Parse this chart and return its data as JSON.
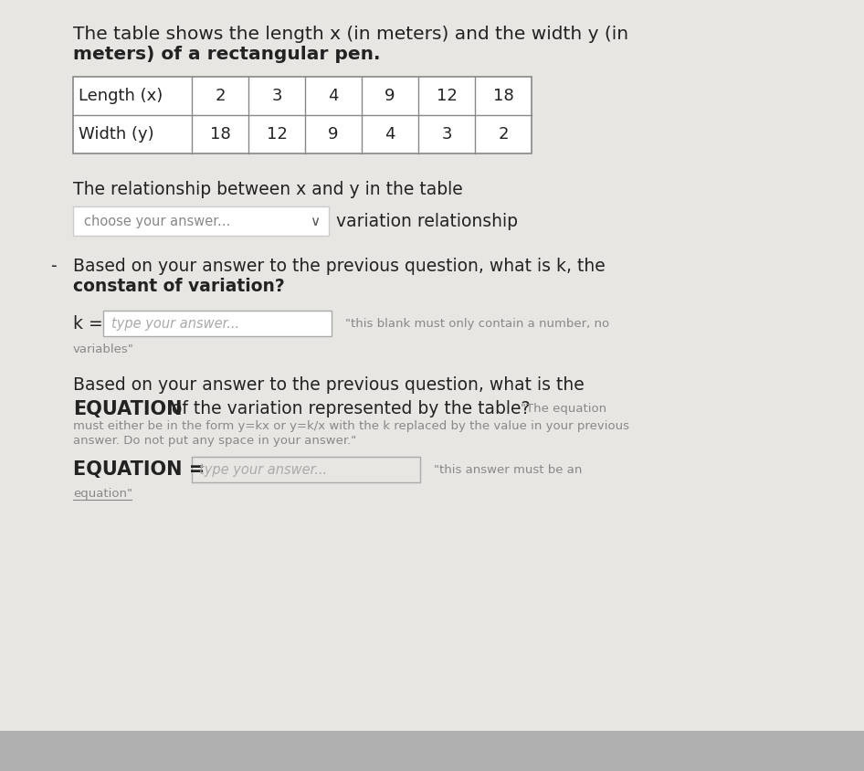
{
  "bg_color_outer": "#b0b0b0",
  "bg_color_inner": "#e8e6e2",
  "title_text_line1": "The table shows the length x (in meters) and the width y (in",
  "title_text_line2": "meters) of a rectangular pen.",
  "table_headers": [
    "Length (x)",
    "2",
    "3",
    "4",
    "9",
    "12",
    "18"
  ],
  "table_row2": [
    "Width (y)",
    "18",
    "12",
    "9",
    "4",
    "3",
    "2"
  ],
  "section1_text": "The relationship between x and y in the table",
  "dropdown_text": "choose your answer...",
  "dropdown_chevron": "∨",
  "variation_text": "variation relationship",
  "dash_prefix": "-",
  "section2_line1": "Based on your answer to the previous question, what is k, the",
  "section2_line2": "constant of variation?",
  "k_label": "k = ",
  "k_input": "type your answer...",
  "k_hint": "\"this blank must only contain a number, no",
  "k_hint2": "variables\"",
  "section3_line1": "Based on your answer to the previous question, what is the",
  "section3_line2_bold": "EQUATION",
  "section3_line2_rest": " of the variation represented by the table? ",
  "section3_small_hint": "\"The equation",
  "section3_small1": "must either be in the form y=kx or y=k/x with the k replaced by the value in your previous",
  "section3_small2": "answer. Do not put any space in your answer.\"",
  "eq_label": "EQUATION = ",
  "eq_input": "type your answer...",
  "eq_hint": "\"this answer must be an",
  "eq_hint2": "equation\"",
  "text_dark": "#222222",
  "text_medium": "#555555",
  "text_light": "#888888",
  "text_placeholder": "#aaaaaa",
  "table_border": "#888888",
  "input_border": "#aaaaaa",
  "title_fontsize": 14.5,
  "body_fontsize": 13.5,
  "body_bold_fontsize": 15,
  "small_fontsize": 9.5,
  "table_fontsize": 13
}
